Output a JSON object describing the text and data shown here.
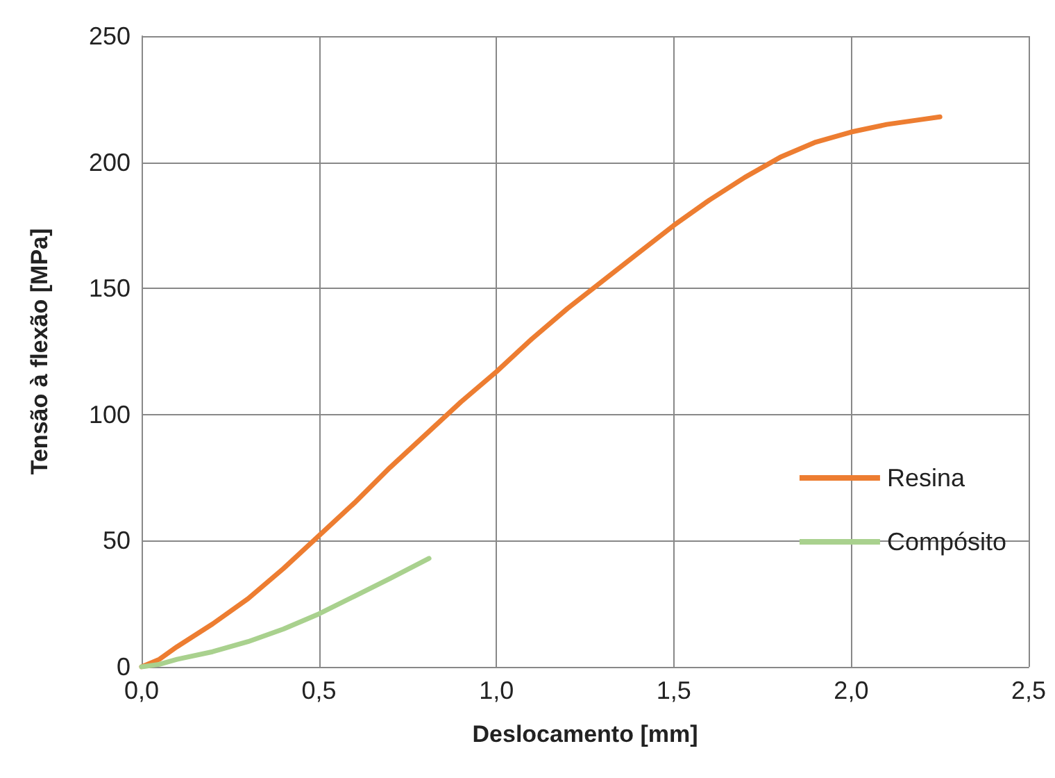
{
  "chart_data": {
    "type": "line",
    "xlabel": "Deslocamento [mm]",
    "ylabel": "Tensão à flexão [MPa]",
    "xlim": [
      0,
      2.5
    ],
    "xticks": [
      {
        "value": 0,
        "label": "0,0"
      },
      {
        "value": 0.5,
        "label": "0,5"
      },
      {
        "value": 1,
        "label": "1,0"
      },
      {
        "value": 1.5,
        "label": "1,5"
      },
      {
        "value": 2,
        "label": "2,0"
      },
      {
        "value": 2.5,
        "label": "2,5"
      }
    ],
    "ylim": [
      0,
      250
    ],
    "yticks": [
      0,
      50,
      100,
      150,
      200,
      250
    ],
    "grid": true,
    "legend": "right",
    "marker": "none",
    "line_style": "solid",
    "series": [
      {
        "name": "Resina",
        "color": "#ed7d31",
        "x": [
          0,
          0.05,
          0.1,
          0.2,
          0.3,
          0.4,
          0.5,
          0.6,
          0.7,
          0.8,
          0.9,
          1.0,
          1.1,
          1.2,
          1.3,
          1.4,
          1.5,
          1.6,
          1.7,
          1.8,
          1.9,
          2.0,
          2.1,
          2.2,
          2.25
        ],
        "values": [
          0,
          3,
          8,
          17,
          27,
          39,
          52,
          65,
          79,
          92,
          105,
          117,
          130,
          142,
          153,
          164,
          175,
          185,
          194,
          202,
          208,
          212,
          215,
          217,
          218
        ]
      },
      {
        "name": "Compósito",
        "color": "#a9d18e",
        "x": [
          0,
          0.05,
          0.1,
          0.2,
          0.3,
          0.4,
          0.5,
          0.6,
          0.7,
          0.81
        ],
        "values": [
          0,
          1,
          3,
          6,
          10,
          15,
          21,
          28,
          35,
          43
        ]
      }
    ]
  }
}
